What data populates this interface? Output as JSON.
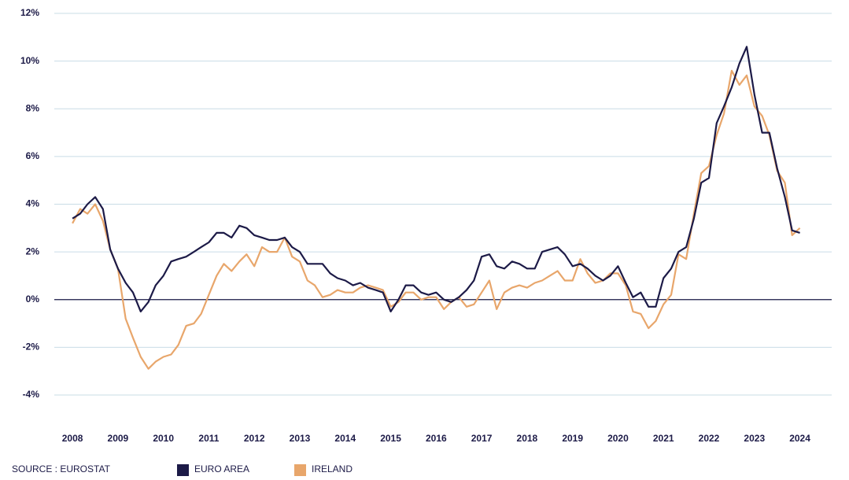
{
  "chart_data": {
    "type": "line",
    "source": "SOURCE : EUROSTAT",
    "x": [
      2008,
      2008.17,
      2008.33,
      2008.5,
      2008.67,
      2008.83,
      2009,
      2009.17,
      2009.33,
      2009.5,
      2009.67,
      2009.83,
      2010,
      2010.17,
      2010.33,
      2010.5,
      2010.67,
      2010.83,
      2011,
      2011.17,
      2011.33,
      2011.5,
      2011.67,
      2011.83,
      2012,
      2012.17,
      2012.33,
      2012.5,
      2012.67,
      2012.83,
      2013,
      2013.17,
      2013.33,
      2013.5,
      2013.67,
      2013.83,
      2014,
      2014.17,
      2014.33,
      2014.5,
      2014.67,
      2014.83,
      2015,
      2015.17,
      2015.33,
      2015.5,
      2015.67,
      2015.83,
      2016,
      2016.17,
      2016.33,
      2016.5,
      2016.67,
      2016.83,
      2017,
      2017.17,
      2017.33,
      2017.5,
      2017.67,
      2017.83,
      2018,
      2018.17,
      2018.33,
      2018.5,
      2018.67,
      2018.83,
      2019,
      2019.17,
      2019.33,
      2019.5,
      2019.67,
      2019.83,
      2020,
      2020.17,
      2020.33,
      2020.5,
      2020.67,
      2020.83,
      2021,
      2021.17,
      2021.33,
      2021.5,
      2021.67,
      2021.83,
      2022,
      2022.17,
      2022.33,
      2022.5,
      2022.67,
      2022.83,
      2023,
      2023.17,
      2023.33,
      2023.5,
      2023.67,
      2023.83,
      2024
    ],
    "series": [
      {
        "name": "EURO AREA",
        "color": "#1c1a47",
        "values": [
          3.4,
          3.6,
          4.0,
          4.3,
          3.8,
          2.1,
          1.3,
          0.7,
          0.3,
          -0.5,
          -0.1,
          0.6,
          1.0,
          1.6,
          1.7,
          1.8,
          2.0,
          2.2,
          2.4,
          2.8,
          2.8,
          2.6,
          3.1,
          3.0,
          2.7,
          2.6,
          2.5,
          2.5,
          2.6,
          2.2,
          2.0,
          1.5,
          1.5,
          1.5,
          1.1,
          0.9,
          0.8,
          0.6,
          0.7,
          0.5,
          0.4,
          0.3,
          -0.5,
          0.0,
          0.6,
          0.6,
          0.3,
          0.2,
          0.3,
          0.0,
          -0.1,
          0.1,
          0.4,
          0.8,
          1.8,
          1.9,
          1.4,
          1.3,
          1.6,
          1.5,
          1.3,
          1.3,
          2.0,
          2.1,
          2.2,
          1.9,
          1.4,
          1.5,
          1.3,
          1.0,
          0.8,
          1.0,
          1.4,
          0.7,
          0.1,
          0.3,
          -0.3,
          -0.3,
          0.9,
          1.3,
          2.0,
          2.2,
          3.4,
          4.9,
          5.1,
          7.4,
          8.1,
          8.9,
          9.9,
          10.6,
          8.6,
          7.0,
          7.0,
          5.5,
          4.3,
          2.9,
          2.8
        ]
      },
      {
        "name": "IRELAND",
        "color": "#e8a66b",
        "values": [
          3.2,
          3.8,
          3.6,
          4.0,
          3.3,
          2.1,
          1.3,
          -0.8,
          -1.6,
          -2.4,
          -2.9,
          -2.6,
          -2.4,
          -2.3,
          -1.9,
          -1.1,
          -1.0,
          -0.6,
          0.2,
          1.0,
          1.5,
          1.2,
          1.6,
          1.9,
          1.4,
          2.2,
          2.0,
          2.0,
          2.6,
          1.8,
          1.6,
          0.8,
          0.6,
          0.1,
          0.2,
          0.4,
          0.3,
          0.3,
          0.5,
          0.6,
          0.5,
          0.4,
          -0.3,
          -0.1,
          0.3,
          0.3,
          0.0,
          0.1,
          0.1,
          -0.4,
          -0.1,
          0.1,
          -0.3,
          -0.2,
          0.3,
          0.8,
          -0.4,
          0.3,
          0.5,
          0.6,
          0.5,
          0.7,
          0.8,
          1.0,
          1.2,
          0.8,
          0.8,
          1.7,
          1.1,
          0.7,
          0.8,
          1.1,
          1.1,
          0.6,
          -0.5,
          -0.6,
          -1.2,
          -0.9,
          -0.2,
          0.2,
          1.9,
          1.7,
          3.6,
          5.3,
          5.6,
          6.9,
          7.8,
          9.6,
          9.0,
          9.4,
          8.1,
          7.7,
          6.9,
          5.4,
          4.9,
          2.7,
          3.0
        ]
      }
    ],
    "xlim": [
      2007.6,
      2024.7
    ],
    "xticks": [
      2008,
      2009,
      2010,
      2011,
      2012,
      2013,
      2014,
      2015,
      2016,
      2017,
      2018,
      2019,
      2020,
      2021,
      2022,
      2023,
      2024
    ],
    "ylim": [
      -4,
      12
    ],
    "yticks": [
      {
        "value": -4,
        "label": "-4%"
      },
      {
        "value": -2,
        "label": "-2%"
      },
      {
        "value": 0,
        "label": "0%"
      },
      {
        "value": 2,
        "label": "2%"
      },
      {
        "value": 4,
        "label": "4%"
      },
      {
        "value": 6,
        "label": "6%"
      },
      {
        "value": 8,
        "label": "8%"
      },
      {
        "value": 10,
        "label": "10%"
      },
      {
        "value": 12,
        "label": "12%"
      }
    ],
    "grid": true,
    "legend": "bottom"
  }
}
